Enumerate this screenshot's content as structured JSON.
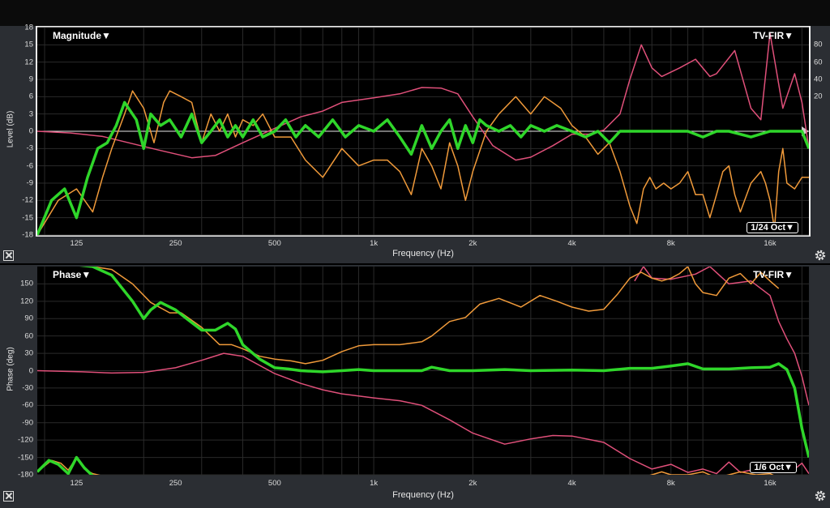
{
  "colors": {
    "green": "#2fd62a",
    "orange": "#f09a3a",
    "pink": "#e0507a",
    "grid": "#2a2a2a",
    "zero": "#e8e8e8"
  },
  "magnitude": {
    "title": "Magnitude▼",
    "preset": "TV-FIR▼",
    "smoothing": "1/24 Oct▼",
    "xlabel": "Frequency (Hz)",
    "ylabel": "Level (dB)"
  },
  "phase": {
    "title": "Phase▼",
    "preset": "TV-FIR▼",
    "smoothing": "1/6 Oct▼",
    "xlabel": "Frequency (Hz)",
    "ylabel": "Phase (deg)"
  },
  "chart_data": [
    {
      "type": "line",
      "title": "Magnitude",
      "xlabel": "Frequency (Hz)",
      "ylabel": "Level (dB)",
      "xscale": "log",
      "xlim": [
        95,
        21000
      ],
      "ylim": [
        -18,
        18
      ],
      "yticks": [
        18,
        15,
        12,
        9,
        6,
        3,
        0,
        -3,
        -6,
        -9,
        -12,
        -15,
        -18
      ],
      "yticks_right": [
        80,
        60,
        40,
        20
      ],
      "xticks": [
        {
          "v": 125,
          "label": "125"
        },
        {
          "v": 250,
          "label": "250"
        },
        {
          "v": 500,
          "label": "500"
        },
        {
          "v": 1000,
          "label": "1k"
        },
        {
          "v": 2000,
          "label": "2k"
        },
        {
          "v": 4000,
          "label": "4k"
        },
        {
          "v": 8000,
          "label": "8k"
        },
        {
          "v": 16000,
          "label": "16k"
        }
      ],
      "series": [
        {
          "color": "pink",
          "width": 1.5,
          "x": [
            95,
            120,
            150,
            180,
            220,
            280,
            330,
            400,
            500,
            600,
            700,
            800,
            1000,
            1200,
            1400,
            1600,
            1800,
            2000,
            2300,
            2700,
            3000,
            3500,
            4000,
            4500,
            5000,
            5600,
            6000,
            6500,
            7000,
            7500,
            8500,
            9500,
            10500,
            11000,
            12500,
            14000,
            15000,
            16000,
            17500,
            19000,
            20000,
            21000
          ],
          "y": [
            0,
            -0.3,
            -0.9,
            -2,
            -3.2,
            -4.6,
            -4.2,
            -2,
            0.5,
            2.5,
            3.5,
            5,
            5.8,
            6.5,
            7.6,
            7.5,
            6.5,
            2.5,
            -2.5,
            -5,
            -4.5,
            -2.5,
            -0.5,
            -0.5,
            0.2,
            3,
            9,
            15,
            11,
            9.5,
            11,
            12.5,
            9.5,
            10,
            14,
            4,
            2,
            17,
            4,
            10,
            5,
            -3
          ]
        },
        {
          "color": "orange",
          "width": 1.5,
          "x": [
            95,
            110,
            125,
            140,
            150,
            160,
            175,
            185,
            200,
            215,
            230,
            240,
            260,
            280,
            300,
            320,
            340,
            360,
            380,
            400,
            430,
            460,
            500,
            560,
            620,
            700,
            800,
            900,
            1000,
            1100,
            1200,
            1300,
            1400,
            1500,
            1600,
            1700,
            1800,
            1900,
            2000,
            2200,
            2400,
            2700,
            3000,
            3300,
            3700,
            4000,
            4400,
            4800,
            5200,
            5600,
            6000,
            6300,
            6600,
            6900,
            7200,
            7600,
            8000,
            8500,
            9000,
            9500,
            10000,
            10500,
            11000,
            11500,
            12000,
            12500,
            13000,
            14000,
            15000,
            15500,
            16000,
            16500,
            17000,
            17500,
            18000,
            19000,
            20000,
            21000
          ],
          "y": [
            -18,
            -12,
            -10,
            -14,
            -8,
            -3,
            3,
            7,
            4,
            -2,
            5,
            7,
            6,
            5,
            -2,
            3,
            0,
            3,
            -1,
            2,
            1,
            3,
            -1,
            -1,
            -5,
            -8,
            -3,
            -6,
            -5,
            -5,
            -7,
            -11,
            -3,
            -6,
            -10,
            -2,
            -6,
            -12,
            -7,
            0,
            3,
            6,
            3,
            6,
            4,
            1,
            -1,
            -4,
            -2,
            -7,
            -13,
            -16,
            -10,
            -8,
            -10,
            -9,
            -10,
            -9,
            -7,
            -11,
            -11,
            -15,
            -11,
            -7,
            -6,
            -11,
            -14,
            -9,
            -7,
            -9,
            -12,
            -17,
            -7,
            -3,
            -9,
            -10,
            -8,
            -8
          ]
        },
        {
          "color": "green",
          "width": 3.5,
          "x": [
            95,
            105,
            115,
            125,
            135,
            145,
            155,
            165,
            175,
            190,
            200,
            210,
            225,
            240,
            260,
            280,
            300,
            320,
            340,
            360,
            380,
            400,
            430,
            460,
            500,
            540,
            580,
            620,
            680,
            750,
            820,
            900,
            1000,
            1100,
            1200,
            1300,
            1400,
            1500,
            1600,
            1700,
            1800,
            1900,
            2000,
            2100,
            2200,
            2400,
            2600,
            2800,
            3000,
            3300,
            3600,
            4000,
            4400,
            4800,
            5200,
            5600,
            6000,
            7000,
            8000,
            9000,
            10000,
            11000,
            12000,
            14000,
            16000,
            18000,
            20000,
            21000
          ],
          "y": [
            -18,
            -12,
            -10,
            -15,
            -8,
            -3,
            -2,
            1,
            5,
            2,
            -3,
            3,
            1,
            2,
            -1,
            3,
            -2,
            0,
            2,
            -1,
            1,
            -1,
            2,
            -1,
            0,
            2,
            -1,
            1,
            -1,
            2,
            -1,
            1,
            0,
            2,
            -1,
            -4,
            1,
            -3,
            0,
            2,
            -3,
            1,
            -2,
            2,
            1,
            0,
            1,
            -1,
            1,
            0,
            1,
            0,
            -1,
            0,
            -2,
            0,
            0,
            0,
            0,
            0,
            -1,
            0,
            0,
            -1,
            0,
            0,
            0,
            -3
          ]
        }
      ]
    },
    {
      "type": "line",
      "title": "Phase",
      "xlabel": "Frequency (Hz)",
      "ylabel": "Phase (deg)",
      "xscale": "log",
      "xlim": [
        95,
        21000
      ],
      "ylim": [
        -180,
        180
      ],
      "yticks": [
        150,
        120,
        90,
        60,
        30,
        0,
        -30,
        -60,
        -90,
        -120,
        -150,
        -180
      ],
      "xticks": [
        {
          "v": 125,
          "label": "125"
        },
        {
          "v": 250,
          "label": "250"
        },
        {
          "v": 500,
          "label": "500"
        },
        {
          "v": 1000,
          "label": "1k"
        },
        {
          "v": 2000,
          "label": "2k"
        },
        {
          "v": 4000,
          "label": "4k"
        },
        {
          "v": 8000,
          "label": "8k"
        },
        {
          "v": 16000,
          "label": "16k"
        }
      ],
      "series": [
        {
          "color": "pink",
          "width": 1.5,
          "x": [
            95,
            130,
            160,
            200,
            250,
            300,
            350,
            400,
            500,
            600,
            700,
            800,
            1000,
            1200,
            1400,
            1700,
            2000,
            2500,
            3000,
            3500,
            4000,
            5000,
            6000,
            7000,
            8000,
            9000,
            10000,
            11000,
            12000,
            13000,
            15000,
            17000,
            19000,
            20000,
            21000
          ],
          "y": [
            0,
            -2,
            -4,
            -3,
            5,
            18,
            30,
            25,
            -5,
            -22,
            -33,
            -40,
            -47,
            -52,
            -60,
            -85,
            -108,
            -127,
            -118,
            -112,
            -113,
            -124,
            -152,
            -170,
            -162,
            -176,
            -170,
            -178,
            -158,
            -176,
            -168,
            -172,
            -170,
            -160,
            -178
          ]
        },
        {
          "color": "pink",
          "width": 1.5,
          "x": [
            6200,
            6600,
            7000,
            8000,
            9500,
            10500,
            12000,
            14000,
            16000,
            17000,
            18000,
            19000,
            20000,
            21000
          ],
          "y": [
            155,
            180,
            160,
            158,
            167,
            180,
            150,
            155,
            130,
            85,
            55,
            30,
            -10,
            -60
          ]
        },
        {
          "color": "orange",
          "width": 1.5,
          "x": [
            95,
            110,
            125,
            140,
            160,
            185,
            210,
            240,
            260,
            300,
            340,
            370,
            400,
            450,
            500,
            560,
            620,
            700,
            800,
            900,
            1000,
            1200,
            1400,
            1500,
            1700,
            1900,
            2100,
            2400,
            2800,
            3200,
            3600,
            4000,
            4500,
            5000,
            5500,
            6000,
            6500,
            7000,
            7500,
            8000,
            8500,
            9000,
            9500,
            10000,
            11000,
            12000,
            13000,
            14000,
            15000,
            16000,
            17000
          ],
          "y": [
            185,
            185,
            182,
            180,
            175,
            150,
            118,
            100,
            100,
            75,
            45,
            45,
            38,
            25,
            20,
            17,
            12,
            18,
            33,
            43,
            45,
            45,
            50,
            60,
            85,
            92,
            115,
            125,
            110,
            130,
            120,
            110,
            103,
            106,
            132,
            160,
            170,
            160,
            155,
            160,
            168,
            180,
            150,
            135,
            130,
            160,
            168,
            150,
            170,
            155,
            142
          ]
        },
        {
          "color": "orange",
          "width": 1.5,
          "x": [
            95,
            105,
            112,
            118,
            125,
            132,
            140,
            150
          ],
          "y": [
            -175,
            -155,
            -160,
            -172,
            -150,
            -170,
            -178,
            -182
          ]
        },
        {
          "color": "orange",
          "width": 1.5,
          "x": [
            6500,
            7000,
            7500,
            8000,
            9000,
            10000,
            11000,
            12000,
            13000,
            14500,
            16000,
            17000
          ],
          "y": [
            -185,
            -180,
            -175,
            -180,
            -180,
            -175,
            -185,
            -180,
            -175,
            -180,
            -178,
            -185
          ]
        },
        {
          "color": "green",
          "width": 3.5,
          "x": [
            95,
            110,
            125,
            140,
            160,
            185,
            200,
            210,
            225,
            250,
            270,
            300,
            330,
            360,
            380,
            400,
            450,
            500,
            550,
            600,
            700,
            800,
            900,
            1000,
            1200,
            1400,
            1500,
            1700,
            2000,
            2500,
            3000,
            4000,
            5000,
            6000,
            7000,
            8000,
            9000,
            10000,
            12000,
            14000,
            16000,
            17000,
            18000,
            19000,
            20000,
            21000
          ],
          "y": [
            185,
            185,
            183,
            180,
            165,
            120,
            90,
            105,
            118,
            105,
            90,
            70,
            70,
            82,
            72,
            45,
            20,
            5,
            3,
            0,
            -2,
            0,
            2,
            0,
            0,
            0,
            6,
            0,
            0,
            2,
            0,
            1,
            0,
            4,
            4,
            8,
            12,
            3,
            3,
            5,
            6,
            12,
            2,
            -30,
            -100,
            -150
          ]
        },
        {
          "color": "green",
          "width": 3.5,
          "x": [
            95,
            103,
            110,
            118,
            125,
            132,
            140,
            150
          ],
          "y": [
            -175,
            -155,
            -162,
            -178,
            -150,
            -168,
            -182,
            -185
          ]
        }
      ]
    }
  ]
}
